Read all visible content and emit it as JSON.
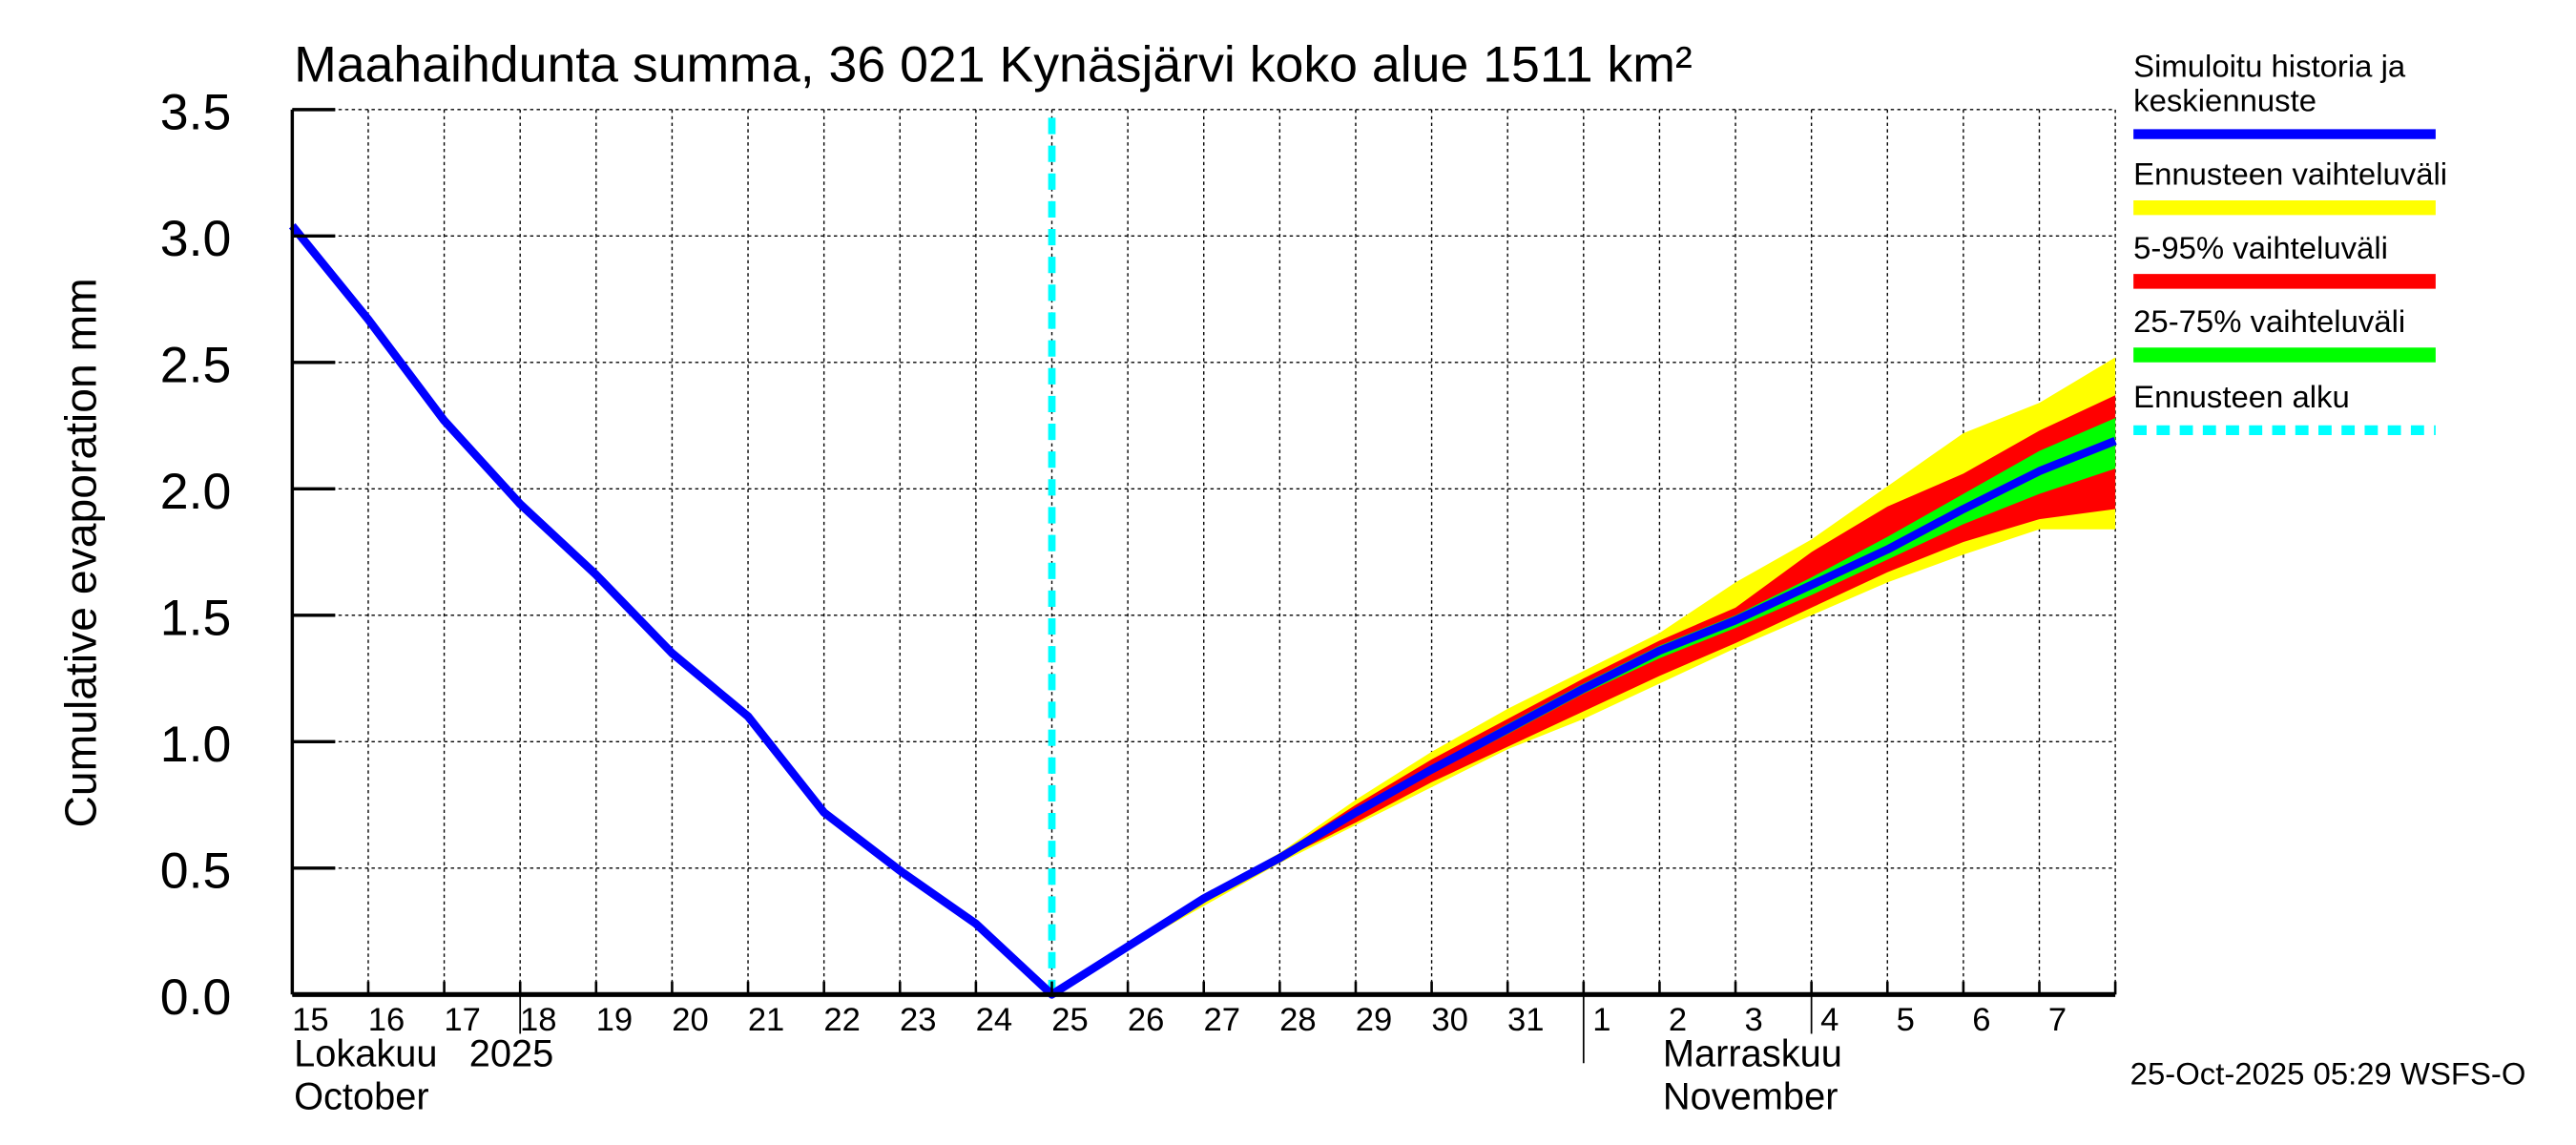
{
  "chart_data": {
    "type": "area",
    "title": "Maahaihdunta summa, 36 021 Kynäsjärvi koko alue 1511 km²",
    "ylabel": "Cumulative evaporation   mm",
    "ylim": [
      0,
      3.5
    ],
    "yticks": [
      "0.0",
      "0.5",
      "1.0",
      "1.5",
      "2.0",
      "2.5",
      "3.0",
      "3.5"
    ],
    "grid": true,
    "x_days": [
      "15",
      "16",
      "17",
      "18",
      "19",
      "20",
      "21",
      "22",
      "23",
      "24",
      "25",
      "26",
      "27",
      "28",
      "29",
      "30",
      "31",
      "1",
      "2",
      "3",
      "4",
      "5",
      "6",
      "7",
      "8"
    ],
    "x_tick_labels": [
      "15",
      "16",
      "17",
      "18",
      "19",
      "20",
      "21",
      "22",
      "23",
      "24",
      "25",
      "26",
      "27",
      "28",
      "29",
      "30",
      "31",
      "1",
      "2",
      "3",
      "4",
      "5",
      "6",
      "7"
    ],
    "month_labels": {
      "oct_fi": "Lokakuu   2025",
      "oct_en": "October",
      "nov_fi": "Marraskuu",
      "nov_en": "November"
    },
    "forecast_start_index": 10,
    "series": [
      {
        "name": "Simuloitu historia ja keskiennuste",
        "color": "#0000ff",
        "kind": "line",
        "values": [
          3.04,
          2.67,
          2.27,
          1.94,
          1.66,
          1.35,
          1.1,
          0.72,
          0.49,
          0.28,
          0.0,
          0.19,
          0.38,
          0.54,
          0.72,
          0.89,
          1.05,
          1.21,
          1.36,
          1.48,
          1.62,
          1.76,
          1.92,
          2.07,
          2.19
        ]
      },
      {
        "name": "Ennusteen vaihteluväli",
        "color": "#ffff00",
        "kind": "band",
        "start_index": 10,
        "upper": [
          0.0,
          0.19,
          0.39,
          0.56,
          0.77,
          0.96,
          1.13,
          1.28,
          1.43,
          1.63,
          1.8,
          2.01,
          2.22,
          2.34,
          2.52
        ],
        "lower": [
          0.0,
          0.18,
          0.35,
          0.52,
          0.67,
          0.82,
          0.97,
          1.09,
          1.23,
          1.37,
          1.5,
          1.63,
          1.74,
          1.84,
          1.84
        ]
      },
      {
        "name": "5-95% vaihteluväli",
        "color": "#ff0000",
        "kind": "band",
        "start_index": 10,
        "upper": [
          0.0,
          0.19,
          0.385,
          0.555,
          0.75,
          0.93,
          1.09,
          1.25,
          1.4,
          1.53,
          1.75,
          1.93,
          2.06,
          2.23,
          2.37
        ],
        "lower": [
          0.0,
          0.185,
          0.37,
          0.53,
          0.68,
          0.84,
          0.98,
          1.12,
          1.26,
          1.39,
          1.53,
          1.67,
          1.79,
          1.88,
          1.92
        ]
      },
      {
        "name": "25-75% vaihteluväli",
        "color": "#00ff00",
        "kind": "band",
        "start_index": 10,
        "upper": [
          0.0,
          0.19,
          0.382,
          0.545,
          0.73,
          0.905,
          1.07,
          1.23,
          1.38,
          1.5,
          1.65,
          1.81,
          1.98,
          2.15,
          2.28
        ],
        "lower": [
          0.0,
          0.188,
          0.378,
          0.535,
          0.71,
          0.875,
          1.03,
          1.19,
          1.33,
          1.45,
          1.58,
          1.72,
          1.86,
          1.98,
          2.08
        ]
      },
      {
        "name": "Ennusteen alku",
        "color": "#00ffff",
        "kind": "vline"
      }
    ],
    "legend_placement": "right",
    "timestamp": "25-Oct-2025 05:29 WSFS-O"
  }
}
